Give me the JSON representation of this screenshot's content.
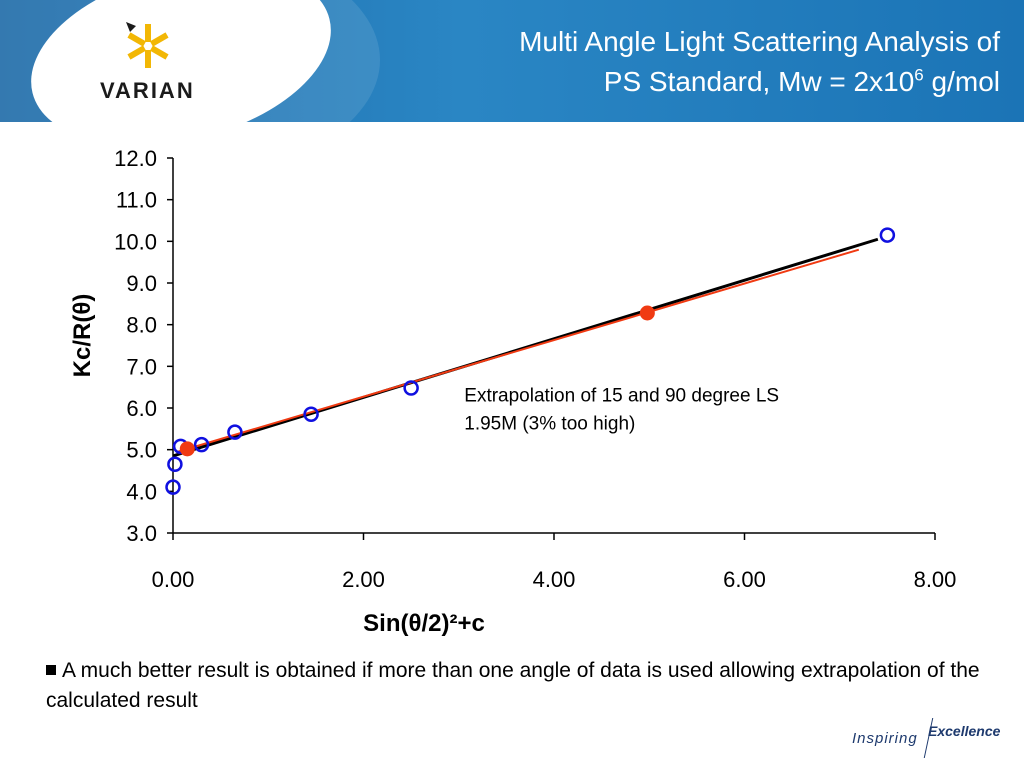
{
  "header": {
    "title_line1": "Multi Angle Light Scattering Analysis of",
    "title_line2_pre": "PS Standard, Mw = 2x10",
    "title_line2_sup": "6",
    "title_line2_post": " g/mol",
    "logo_text": "VARIAN"
  },
  "bullet": {
    "text": "A much better result is obtained if more than one angle of data is used allowing extrapolation of the calculated result"
  },
  "footer": {
    "tagline_a": "Inspiring",
    "tagline_b": "Excellence"
  },
  "chart_data": {
    "type": "scatter",
    "xlabel": "Sin(θ/2)²+c",
    "ylabel": "Kc/R(θ)",
    "xlim": [
      0,
      8
    ],
    "ylim": [
      3,
      12
    ],
    "x_ticks": [
      "0.00",
      "2.00",
      "4.00",
      "6.00",
      "8.00"
    ],
    "y_ticks": [
      "3.0",
      "4.0",
      "5.0",
      "6.0",
      "7.0",
      "8.0",
      "9.0",
      "10.0",
      "11.0",
      "12.0"
    ],
    "grid": false,
    "series": [
      {
        "marker": "open-circle",
        "color": "#1010e0",
        "points": [
          [
            0.0,
            4.1
          ],
          [
            0.02,
            4.65
          ],
          [
            0.08,
            5.08
          ],
          [
            0.3,
            5.12
          ],
          [
            0.65,
            5.42
          ],
          [
            1.45,
            5.85
          ],
          [
            2.5,
            6.48
          ],
          [
            7.5,
            10.15
          ]
        ]
      },
      {
        "marker": "filled-circle",
        "color": "#f03a12",
        "points": [
          [
            0.15,
            5.02
          ],
          [
            4.98,
            8.28
          ]
        ]
      }
    ],
    "fit_lines": [
      {
        "color": "#000000",
        "from": [
          0.0,
          4.85
        ],
        "to": [
          7.4,
          10.05
        ]
      },
      {
        "color": "#f03a12",
        "from": [
          0.05,
          4.95
        ],
        "to": [
          7.2,
          9.8
        ]
      }
    ],
    "annotation": {
      "line1": "Extrapolation of 15 and 90 degree LS",
      "line2": "1.95M (3% too high)",
      "x": 3.1,
      "y": 6.3
    }
  }
}
